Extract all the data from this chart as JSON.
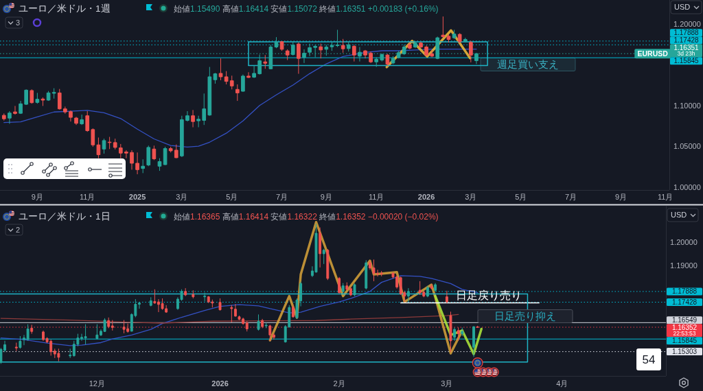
{
  "chart_data": [
    {
      "type": "candlestick",
      "title": "ユーロ／米ドル・1週",
      "subtitle": "始値1.15490 高値1.16414 安値1.15072 終値1.16351 +0.00183 (+0.16%)",
      "ylabel": "USD",
      "x": [
        "2024-07-22",
        "2024-07-29",
        "2024-08-05",
        "2024-08-12",
        "2024-08-19",
        "2024-08-26",
        "2024-09-02",
        "2024-09-09",
        "2024-09-16",
        "2024-09-23",
        "2024-09-30",
        "2024-10-07",
        "2024-10-14",
        "2024-10-21",
        "2024-10-28",
        "2024-11-04",
        "2024-11-11",
        "2024-11-18",
        "2024-11-25",
        "2024-12-02",
        "2024-12-09",
        "2024-12-16",
        "2024-12-23",
        "2024-12-30",
        "2025-01-06",
        "2025-01-13",
        "2025-01-20",
        "2025-01-27",
        "2025-02-03",
        "2025-02-10",
        "2025-02-17",
        "2025-02-24",
        "2025-03-03",
        "2025-03-10",
        "2025-03-17",
        "2025-03-24",
        "2025-03-31",
        "2025-04-07",
        "2025-04-14",
        "2025-04-21",
        "2025-04-28",
        "2025-05-05",
        "2025-05-12",
        "2025-05-19",
        "2025-05-26",
        "2025-06-02",
        "2025-06-09",
        "2025-06-16",
        "2025-06-23",
        "2025-06-30",
        "2025-07-07",
        "2025-07-14",
        "2025-07-21",
        "2025-07-28",
        "2025-08-04",
        "2025-08-11",
        "2025-08-18",
        "2025-08-25",
        "2025-09-01",
        "2025-09-08",
        "2025-09-15",
        "2025-09-22",
        "2025-09-29",
        "2025-10-06",
        "2025-10-13",
        "2025-10-20",
        "2025-10-27",
        "2025-11-03",
        "2025-11-10",
        "2025-11-17",
        "2025-11-24",
        "2025-12-01",
        "2025-12-08",
        "2025-12-15",
        "2025-12-22",
        "2025-12-29",
        "2026-01-05",
        "2026-01-12",
        "2026-01-19",
        "2026-01-26",
        "2026-02-02",
        "2026-02-09",
        "2026-02-16",
        "2026-02-23",
        "2026-03-02",
        "2026-03-09"
      ],
      "ohlc": [
        [
          1.0879,
          1.0902,
          1.0815,
          1.0837
        ],
        [
          1.0845,
          1.093,
          1.0775,
          1.0907
        ],
        [
          1.0921,
          1.0994,
          1.0888,
          1.0902
        ],
        [
          1.0904,
          1.1056,
          1.0896,
          1.102
        ],
        [
          1.1014,
          1.1197,
          1.1006,
          1.1188
        ],
        [
          1.1183,
          1.1197,
          1.1022,
          1.1034
        ],
        [
          1.1037,
          1.1154,
          1.1022,
          1.1076
        ],
        [
          1.1079,
          1.1098,
          1.0994,
          1.1065
        ],
        [
          1.1065,
          1.1177,
          1.1056,
          1.1154
        ],
        [
          1.1149,
          1.1211,
          1.1084,
          1.116
        ],
        [
          1.1154,
          1.1202,
          1.0949,
          1.0958
        ],
        [
          1.0958,
          1.0986,
          1.0899,
          1.0921
        ],
        [
          1.0924,
          1.0938,
          1.0803,
          1.0854
        ],
        [
          1.0846,
          1.086,
          1.0761,
          1.0781
        ],
        [
          1.0775,
          1.0888,
          1.0761,
          1.0826
        ],
        [
          1.0874,
          1.093,
          1.0677,
          1.0691
        ],
        [
          1.0705,
          1.0719,
          1.0494,
          1.0517
        ],
        [
          1.0517,
          1.0607,
          1.0354,
          1.0396
        ],
        [
          1.0466,
          1.0593,
          1.041,
          1.057
        ],
        [
          1.0551,
          1.0615,
          1.0466,
          1.0545
        ],
        [
          1.0545,
          1.0593,
          1.0461,
          1.0486
        ],
        [
          1.048,
          1.0528,
          1.0354,
          1.0416
        ],
        [
          1.043,
          1.0452,
          1.0354,
          1.0416
        ],
        [
          1.0424,
          1.0452,
          1.0213,
          1.0292
        ],
        [
          1.0292,
          1.0424,
          1.0157,
          1.0213
        ],
        [
          1.0228,
          1.034,
          1.0171,
          1.0256
        ],
        [
          1.027,
          1.0508,
          1.0256,
          1.0486
        ],
        [
          1.0466,
          1.0508,
          1.0331,
          1.0346
        ],
        [
          1.0256,
          1.0354,
          1.0199,
          1.0312
        ],
        [
          1.0275,
          1.0494,
          1.027,
          1.0472
        ],
        [
          1.0472,
          1.0494,
          1.0424,
          1.0444
        ],
        [
          1.0452,
          1.0522,
          1.0354,
          1.036
        ],
        [
          1.0382,
          1.0874,
          1.0368,
          1.0826
        ],
        [
          1.0817,
          1.093,
          1.0803,
          1.0874
        ],
        [
          1.0874,
          1.0944,
          1.0733,
          1.0803
        ],
        [
          1.0812,
          1.0874,
          1.0733,
          1.0831
        ],
        [
          1.0817,
          1.1146,
          1.0761,
          1.0958
        ],
        [
          1.0882,
          1.1472,
          1.0874,
          1.1351
        ],
        [
          1.1315,
          1.1399,
          1.1267,
          1.1388
        ],
        [
          1.1393,
          1.1576,
          1.1309,
          1.1351
        ],
        [
          1.1351,
          1.1421,
          1.1258,
          1.1295
        ],
        [
          1.1303,
          1.1365,
          1.1197,
          1.1239
        ],
        [
          1.1197,
          1.1258,
          1.1056,
          1.1154
        ],
        [
          1.1174,
          1.1379,
          1.1169,
          1.136
        ],
        [
          1.136,
          1.1407,
          1.1337,
          1.1343
        ],
        [
          1.1346,
          1.1492,
          1.1337,
          1.1393
        ],
        [
          1.1388,
          1.1624,
          1.1379,
          1.1548
        ],
        [
          1.1534,
          1.1618,
          1.1449,
          1.1517
        ],
        [
          1.1449,
          1.1744,
          1.1444,
          1.1716
        ],
        [
          1.1716,
          1.1837,
          1.1702,
          1.1772
        ],
        [
          1.1781,
          1.1787,
          1.1669,
          1.1688
        ],
        [
          1.1669,
          1.1688,
          1.1556,
          1.1618
        ],
        [
          1.1624,
          1.1787,
          1.1612,
          1.1739
        ],
        [
          1.1753,
          1.1772,
          1.1388,
          1.1576
        ],
        [
          1.159,
          1.1688,
          1.152,
          1.164
        ],
        [
          1.1652,
          1.1758,
          1.1604,
          1.1708
        ],
        [
          1.1711,
          1.1744,
          1.159,
          1.1725
        ],
        [
          1.1719,
          1.1758,
          1.1576,
          1.168
        ],
        [
          1.1688,
          1.1744,
          1.161,
          1.1716
        ],
        [
          1.1719,
          1.1778,
          1.1669,
          1.1736
        ],
        [
          1.1733,
          1.1927,
          1.1716,
          1.1742
        ],
        [
          1.1736,
          1.1815,
          1.1646,
          1.1694
        ],
        [
          1.1697,
          1.1787,
          1.166,
          1.1744
        ],
        [
          1.1725,
          1.1744,
          1.1539,
          1.1618
        ],
        [
          1.1604,
          1.1716,
          1.1539,
          1.1652
        ],
        [
          1.1669,
          1.168,
          1.1576,
          1.1618
        ],
        [
          1.164,
          1.166,
          1.152,
          1.1534
        ],
        [
          1.1534,
          1.159,
          1.1472,
          1.1567
        ],
        [
          1.1556,
          1.164,
          1.1539,
          1.1624
        ],
        [
          1.1618,
          1.1632,
          1.1478,
          1.1506
        ],
        [
          1.152,
          1.1604,
          1.1506,
          1.1576
        ],
        [
          1.159,
          1.1669,
          1.1576,
          1.1646
        ],
        [
          1.1632,
          1.1744,
          1.1618,
          1.1716
        ],
        [
          1.1744,
          1.1772,
          1.1688,
          1.1702
        ],
        [
          1.1716,
          1.1787,
          1.1702,
          1.1764
        ],
        [
          1.1764,
          1.1781,
          1.1702,
          1.1716
        ],
        [
          1.1716,
          1.1736,
          1.1604,
          1.1618
        ],
        [
          1.1632,
          1.1674,
          1.159,
          1.1604
        ],
        [
          1.1576,
          1.1843,
          1.1567,
          1.1829
        ],
        [
          1.1862,
          1.209,
          1.1829,
          1.1843
        ],
        [
          1.1848,
          1.1871,
          1.1772,
          1.1809
        ],
        [
          1.1829,
          1.1927,
          1.1815,
          1.1876
        ],
        [
          1.1871,
          1.1885,
          1.1764,
          1.1781
        ],
        [
          1.1787,
          1.1829,
          1.1772,
          1.1809
        ],
        [
          1.1772,
          1.1792,
          1.1528,
          1.1617
        ],
        [
          1.1549,
          1.16414,
          1.15072,
          1.16351
        ]
      ],
      "colors": [
        "#ef5350",
        "#26a69a",
        "#ef5350",
        "#26a69a",
        "#26a69a",
        "#ef5350",
        "#26a69a",
        "#ef5350",
        "#26a69a",
        "#26a69a",
        "#ef5350",
        "#ef5350",
        "#ef5350",
        "#ef5350",
        "#26a69a",
        "#ef5350",
        "#ef5350",
        "#ef5350",
        "#26a69a",
        "#ef5350",
        "#ef5350",
        "#ef5350",
        "#ef5350",
        "#ef5350",
        "#ef5350",
        "#26a69a",
        "#26a69a",
        "#ef5350",
        "#26a69a",
        "#26a69a",
        "#ef5350",
        "#ef5350",
        "#26a69a",
        "#26a69a",
        "#ef5350",
        "#26a69a",
        "#26a69a",
        "#26a69a",
        "#26a69a",
        "#ef5350",
        "#ef5350",
        "#ef5350",
        "#ef5350",
        "#26a69a",
        "#ef5350",
        "#26a69a",
        "#26a69a",
        "#ef5350",
        "#26a69a",
        "#26a69a",
        "#ef5350",
        "#ef5350",
        "#26a69a",
        "#ef5350",
        "#26a69a",
        "#26a69a",
        "#26a69a",
        "#ef5350",
        "#26a69a",
        "#26a69a",
        "#26a69a",
        "#ef5350",
        "#26a69a",
        "#ef5350",
        "#26a69a",
        "#ef5350",
        "#ef5350",
        "#26a69a",
        "#26a69a",
        "#ef5350",
        "#26a69a",
        "#26a69a",
        "#26a69a",
        "#ef5350",
        "#26a69a",
        "#ef5350",
        "#ef5350",
        "#ef5350",
        "#26a69a",
        "#ef5350",
        "#ef5350",
        "#26a69a",
        "#ef5350",
        "#26a69a",
        "#ef5350",
        "#26a69a"
      ],
      "xlim": [
        "2024-07-17",
        "2026-11-07"
      ],
      "ylim": [
        0.9964,
        1.2292
      ],
      "xticks": [
        {
          "value": "2024-09-02",
          "label": "9月"
        },
        {
          "value": "2024-11-04",
          "label": "11月"
        },
        {
          "value": "2025-01-06",
          "label": "2025"
        },
        {
          "value": "2025-03-03",
          "label": "3月"
        },
        {
          "value": "2025-05-05",
          "label": "5月"
        },
        {
          "value": "2025-07-07",
          "label": "7月"
        },
        {
          "value": "2025-09-01",
          "label": "9月"
        },
        {
          "value": "2025-11-03",
          "label": "11月"
        },
        {
          "value": "2026-01-05",
          "label": "2026"
        },
        {
          "value": "2026-03-02",
          "label": "3月"
        },
        {
          "value": "2026-05-04",
          "label": "5月"
        },
        {
          "value": "2026-07-06",
          "label": "7月"
        },
        {
          "value": "2026-09-07",
          "label": "9月"
        },
        {
          "value": "2026-11-02",
          "label": "11月"
        }
      ],
      "yticks": [
        {
          "value": 1.0,
          "label": "1.00000"
        },
        {
          "value": 1.05,
          "label": "1.05000"
        },
        {
          "value": 1.1,
          "label": "1.10000"
        },
        {
          "value": 1.2,
          "label": "1.20000"
        }
      ],
      "series": [
        {
          "type": "line",
          "color": "#3451c4",
          "x": [
            "2024-07-22",
            "2024-08-12",
            "2024-09-02",
            "2024-09-23",
            "2024-10-14",
            "2024-11-04",
            "2024-11-25",
            "2024-12-16",
            "2025-01-06",
            "2025-01-27",
            "2025-02-17",
            "2025-03-10",
            "2025-03-24",
            "2025-04-07",
            "2025-04-28",
            "2025-05-19",
            "2025-06-09",
            "2025-06-30",
            "2025-07-21",
            "2025-08-11",
            "2025-09-01",
            "2025-09-22",
            "2025-10-20",
            "2025-11-10",
            "2025-12-01",
            "2025-12-22",
            "2026-01-12",
            "2026-02-02",
            "2026-02-23",
            "2026-03-09"
          ],
          "values": [
            1.079,
            1.08,
            1.086,
            1.092,
            1.093,
            1.094,
            1.091,
            1.084,
            1.071,
            1.059,
            1.051,
            1.049,
            1.05,
            1.055,
            1.066,
            1.081,
            1.1,
            1.113,
            1.125,
            1.139,
            1.151,
            1.16,
            1.165,
            1.167,
            1.167,
            1.168,
            1.169,
            1.169,
            1.169,
            1.169
          ]
        },
        {
          "type": "line",
          "color": "#e8b53a",
          "x": [
            "2025-11-16",
            "2025-12-18",
            "2026-01-06",
            "2026-02-05",
            "2026-03-01"
          ],
          "values": [
            1.147,
            1.179,
            1.16,
            1.192,
            1.158
          ]
        },
        {
          "type": "line",
          "color": "#1fb5c6",
          "x": [
            "2025-05-26",
            "2026-03-23",
            "2026-03-23",
            "2025-05-26"
          ],
          "values": [
            1.178,
            1.178,
            1.149,
            1.149
          ]
        },
        {
          "type": "line",
          "color": "#1fb5c6",
          "x": [
            "2025-05-26",
            "2025-05-26"
          ],
          "values": [
            1.149,
            1.178
          ]
        }
      ],
      "ref_lines": [
        {
          "axis": "y",
          "value": 1.17888,
          "label": "1.17888",
          "color": "#00bcd4",
          "line_style": "dotted"
        },
        {
          "axis": "y",
          "value": 1.17428,
          "label": "1.17428",
          "color": "#00bcd4",
          "line_style": "dotted"
        },
        {
          "axis": "y",
          "value": 1.16351,
          "label": "1.16351\n3d 23h",
          "color": "#26a69a",
          "line_style": "dotted"
        },
        {
          "axis": "y",
          "value": 1.15845,
          "label": "1.15845",
          "color": "#00bcd4",
          "line_style": "solid"
        }
      ],
      "annotations": [
        "3",
        {
          "text": "EURUSD",
          "x": "2026-10-17",
          "y": 1.16351
        },
        "週足買い支え"
      ]
    },
    {
      "type": "candlestick",
      "title": "ユーロ／米ドル・1日",
      "subtitle": "始値1.16365 高値1.16414 安値1.16322 終値1.16352 −0.00020 (−0.02%)",
      "ylabel": "USD",
      "x": [
        "2025-11-06",
        "2025-11-07",
        "2025-11-10",
        "2025-11-11",
        "2025-11-12",
        "2025-11-13",
        "2025-11-14",
        "2025-11-17",
        "2025-11-18",
        "2025-11-19",
        "2025-11-20",
        "2025-11-21",
        "2025-11-24",
        "2025-11-25",
        "2025-11-26",
        "2025-11-27",
        "2025-11-28",
        "2025-12-01",
        "2025-12-02",
        "2025-12-03",
        "2025-12-04",
        "2025-12-05",
        "2025-12-08",
        "2025-12-09",
        "2025-12-10",
        "2025-12-11",
        "2025-12-12",
        "2025-12-15",
        "2025-12-16",
        "2025-12-17",
        "2025-12-18",
        "2025-12-19",
        "2025-12-22",
        "2025-12-23",
        "2025-12-24",
        "2025-12-26",
        "2025-12-29",
        "2025-12-30",
        "2025-12-31",
        "2026-01-02",
        "2026-01-05",
        "2026-01-06",
        "2026-01-07",
        "2026-01-08",
        "2026-01-09",
        "2026-01-12",
        "2026-01-13",
        "2026-01-14",
        "2026-01-15",
        "2026-01-16",
        "2026-01-19",
        "2026-01-20",
        "2026-01-21",
        "2026-01-22",
        "2026-01-23",
        "2026-01-26",
        "2026-01-27",
        "2026-01-28",
        "2026-01-29",
        "2026-01-30",
        "2026-02-02",
        "2026-02-03",
        "2026-02-04",
        "2026-02-05",
        "2026-02-06",
        "2026-02-09",
        "2026-02-10",
        "2026-02-11",
        "2026-02-12",
        "2026-02-13",
        "2026-02-16",
        "2026-02-17",
        "2026-02-18",
        "2026-02-19",
        "2026-02-20",
        "2026-02-23",
        "2026-02-24",
        "2026-02-25",
        "2026-02-26",
        "2026-02-27",
        "2026-03-02",
        "2026-03-03",
        "2026-03-04",
        "2026-03-05",
        "2026-03-06",
        "2026-03-09",
        "2026-03-10"
      ],
      "ohlc": [
        [
          1.1484,
          1.1546,
          1.1478,
          1.154
        ],
        [
          1.1536,
          1.1577,
          1.1528,
          1.156
        ],
        [
          1.155,
          1.1569,
          1.1533,
          1.1546
        ],
        [
          1.1548,
          1.1597,
          1.1543,
          1.1575
        ],
        [
          1.1582,
          1.1602,
          1.1558,
          1.1589
        ],
        [
          1.1582,
          1.1648,
          1.1577,
          1.1628
        ],
        [
          1.1631,
          1.1646,
          1.1607,
          1.1617
        ],
        [
          1.1615,
          1.1621,
          1.1577,
          1.1582
        ],
        [
          1.1587,
          1.1592,
          1.1567,
          1.1572
        ],
        [
          1.1575,
          1.1582,
          1.1513,
          1.153
        ],
        [
          1.1533,
          1.1543,
          1.1503,
          1.152
        ],
        [
          1.1523,
          1.1543,
          1.1489,
          1.1506
        ],
        [
          1.1512,
          1.1543,
          1.1503,
          1.1516
        ],
        [
          1.1513,
          1.1577,
          1.1508,
          1.1562
        ],
        [
          1.1562,
          1.1607,
          1.1553,
          1.1589
        ],
        [
          1.1587,
          1.1607,
          1.1577,
          1.1592
        ],
        [
          1.1589,
          1.1648,
          1.156,
          1.1595
        ],
        [
          1.1587,
          1.1648,
          1.1582,
          1.1602
        ],
        [
          1.1602,
          1.1626,
          1.1597,
          1.1618
        ],
        [
          1.1617,
          1.1674,
          1.1615,
          1.1666
        ],
        [
          1.1664,
          1.1677,
          1.1631,
          1.1638
        ],
        [
          1.1641,
          1.1666,
          1.1621,
          1.1634
        ],
        [
          1.1636,
          1.1666,
          1.1609,
          1.1626
        ],
        [
          1.1629,
          1.1651,
          1.1612,
          1.1617
        ],
        [
          1.1618,
          1.1695,
          1.1617,
          1.169
        ],
        [
          1.1685,
          1.1756,
          1.1678,
          1.1734
        ],
        [
          1.1734,
          1.1744,
          1.1715,
          1.1739
        ],
        [
          1.1729,
          1.1764,
          1.1725,
          1.1749
        ],
        [
          1.1746,
          1.1798,
          1.1736,
          1.1739
        ],
        [
          1.1744,
          1.1756,
          1.17,
          1.1733
        ],
        [
          1.1737,
          1.1759,
          1.171,
          1.1715
        ],
        [
          1.1715,
          1.173,
          1.1697,
          1.17
        ],
        [
          1.1715,
          1.1764,
          1.171,
          1.1756
        ],
        [
          1.1754,
          1.1798,
          1.1749,
          1.1789
        ],
        [
          1.1789,
          1.1803,
          1.1769,
          1.1774
        ],
        [
          1.1776,
          1.1794,
          1.1759,
          1.1766
        ],
        [
          1.1766,
          1.1784,
          1.1746,
          1.1769
        ],
        [
          1.1766,
          1.1769,
          1.1739,
          1.1744
        ],
        [
          1.1744,
          1.1754,
          1.172,
          1.1739
        ],
        [
          1.1742,
          1.1759,
          1.1707,
          1.171
        ],
        [
          1.172,
          1.173,
          1.1656,
          1.1715
        ],
        [
          1.1713,
          1.1735,
          1.168,
          1.1683
        ],
        [
          1.168,
          1.1685,
          1.1666,
          1.1669
        ],
        [
          1.1671,
          1.1676,
          1.1646,
          1.1651
        ],
        [
          1.1654,
          1.1661,
          1.1617,
          1.1628
        ],
        [
          1.1626,
          1.169,
          1.1621,
          1.1661
        ],
        [
          1.1664,
          1.1671,
          1.1631,
          1.1638
        ],
        [
          1.1641,
          1.1654,
          1.1631,
          1.1644
        ],
        [
          1.1641,
          1.1646,
          1.1577,
          1.1602
        ],
        [
          1.1602,
          1.1609,
          1.1582,
          1.1592
        ],
        [
          1.1572,
          1.1644,
          1.1569,
          1.1638
        ],
        [
          1.1636,
          1.173,
          1.1634,
          1.172
        ],
        [
          1.172,
          1.173,
          1.1676,
          1.168
        ],
        [
          1.1676,
          1.1759,
          1.1671,
          1.1752
        ],
        [
          1.1749,
          1.1831,
          1.1725,
          1.1823
        ],
        [
          1.1857,
          1.1897,
          1.1851,
          1.1877
        ],
        [
          1.1872,
          1.2079,
          1.187,
          1.2039
        ],
        [
          1.2039,
          1.2064,
          1.1892,
          1.1951
        ],
        [
          1.1951,
          1.1972,
          1.1907,
          1.1966
        ],
        [
          1.1966,
          1.1971,
          1.1838,
          1.1845
        ],
        [
          1.1845,
          1.1851,
          1.1779,
          1.1784
        ],
        [
          1.1789,
          1.1825,
          1.1779,
          1.1813
        ],
        [
          1.1813,
          1.1828,
          1.1795,
          1.1798
        ],
        [
          1.1801,
          1.1808,
          1.1769,
          1.1774
        ],
        [
          1.1774,
          1.1823,
          1.1769,
          1.1818
        ],
        [
          1.1803,
          1.1923,
          1.1798,
          1.1912
        ],
        [
          1.1912,
          1.1921,
          1.1882,
          1.189
        ],
        [
          1.189,
          1.1926,
          1.1833,
          1.1867
        ],
        [
          1.1867,
          1.1882,
          1.1853,
          1.1864
        ],
        [
          1.1867,
          1.1877,
          1.1854,
          1.1864
        ],
        [
          1.1867,
          1.1872,
          1.1845,
          1.1851
        ],
        [
          1.1851,
          1.1857,
          1.1801,
          1.1808
        ],
        [
          1.1848,
          1.1853,
          1.1774,
          1.1779
        ],
        [
          1.1784,
          1.1792,
          1.1744,
          1.1769
        ],
        [
          1.1769,
          1.1803,
          1.1744,
          1.1789
        ],
        [
          1.1794,
          1.1833,
          1.1774,
          1.1784
        ],
        [
          1.1786,
          1.1792,
          1.1764,
          1.1769
        ],
        [
          1.1769,
          1.1813,
          1.1764,
          1.1805
        ],
        [
          1.1811,
          1.1821,
          1.1798,
          1.1803
        ],
        [
          1.1794,
          1.1825,
          1.1789,
          1.1818
        ],
        [
          1.1766,
          1.1792,
          1.1739,
          1.1744
        ],
        [
          1.1685,
          1.1702,
          1.1528,
          1.1577
        ],
        [
          1.1592,
          1.1634,
          1.1577,
          1.1626
        ],
        [
          1.1621,
          1.1634,
          1.1577,
          1.1607
        ],
        [
          1.1607,
          1.1634,
          1.1597,
          1.1617
        ],
        [
          1.1549,
          1.164,
          1.15072,
          1.16372
        ],
        [
          1.16365,
          1.16414,
          1.16322,
          1.16352
        ]
      ],
      "colors": [
        "#26a69a",
        "#26a69a",
        "#ef5350",
        "#26a69a",
        "#26a69a",
        "#26a69a",
        "#ef5350",
        "#ef5350",
        "#ef5350",
        "#ef5350",
        "#ef5350",
        "#ef5350",
        "#26a69a",
        "#26a69a",
        "#26a69a",
        "#26a69a",
        "#26a69a",
        "#26a69a",
        "#26a69a",
        "#26a69a",
        "#ef5350",
        "#ef5350",
        "#ef5350",
        "#ef5350",
        "#26a69a",
        "#26a69a",
        "#26a69a",
        "#26a69a",
        "#ef5350",
        "#ef5350",
        "#ef5350",
        "#ef5350",
        "#26a69a",
        "#26a69a",
        "#ef5350",
        "#ef5350",
        "#26a69a",
        "#ef5350",
        "#ef5350",
        "#ef5350",
        "#ef5350",
        "#ef5350",
        "#ef5350",
        "#ef5350",
        "#ef5350",
        "#26a69a",
        "#ef5350",
        "#26a69a",
        "#ef5350",
        "#ef5350",
        "#26a69a",
        "#26a69a",
        "#ef5350",
        "#26a69a",
        "#26a69a",
        "#26a69a",
        "#26a69a",
        "#ef5350",
        "#26a69a",
        "#ef5350",
        "#ef5350",
        "#26a69a",
        "#ef5350",
        "#ef5350",
        "#26a69a",
        "#26a69a",
        "#ef5350",
        "#ef5350",
        "#ef5350",
        "#ef5350",
        "#ef5350",
        "#ef5350",
        "#ef5350",
        "#ef5350",
        "#26a69a",
        "#ef5350",
        "#ef5350",
        "#26a69a",
        "#ef5350",
        "#26a69a",
        "#ef5350",
        "#ef5350",
        "#26a69a",
        "#ef5350",
        "#26a69a",
        "#26a69a",
        "#ef5350"
      ],
      "xlim": [
        "2025-11-05T18:00",
        "2026-04-28"
      ],
      "ylim": [
        1.1426,
        1.2157
      ],
      "xticks": [
        {
          "value": "2025-12-01",
          "label": "12月"
        },
        {
          "value": "2026-01-02",
          "label": "2026"
        },
        {
          "value": "2026-02-02",
          "label": "2月"
        },
        {
          "value": "2026-03-02",
          "label": "3月"
        },
        {
          "value": "2026-04-01",
          "label": "4月"
        }
      ],
      "yticks": [
        {
          "value": 1.19,
          "label": "1.19000"
        },
        {
          "value": 1.2,
          "label": "1.20000"
        }
      ],
      "series": [
        {
          "type": "line",
          "color": "#3451c4",
          "x": [
            "2025-11-06",
            "2025-11-12",
            "2025-11-18",
            "2025-11-24",
            "2025-11-27",
            "2025-12-02",
            "2025-12-05",
            "2025-12-10",
            "2025-12-15",
            "2025-12-18",
            "2025-12-23",
            "2025-12-29",
            "2026-01-02",
            "2026-01-07",
            "2026-01-12",
            "2026-01-15",
            "2026-01-20",
            "2026-01-23",
            "2026-01-28",
            "2026-02-02",
            "2026-02-05",
            "2026-02-10",
            "2026-02-13",
            "2026-02-18",
            "2026-02-23",
            "2026-02-26",
            "2026-03-03",
            "2026-03-06",
            "2026-03-10"
          ],
          "values": [
            1.1589,
            1.1582,
            1.1567,
            1.1556,
            1.1558,
            1.1569,
            1.1585,
            1.1602,
            1.1626,
            1.1651,
            1.1678,
            1.1707,
            1.1725,
            1.1732,
            1.1727,
            1.1715,
            1.1697,
            1.17,
            1.1725,
            1.1744,
            1.1759,
            1.1789,
            1.1828,
            1.1857,
            1.1854,
            1.1845,
            1.1823,
            1.1798,
            1.1784
          ]
        },
        {
          "type": "line",
          "color": "#8e3a3a",
          "x": [
            "2025-11-06",
            "2025-11-24",
            "2025-12-10",
            "2025-12-18",
            "2025-12-31",
            "2026-01-15",
            "2026-01-27",
            "2026-02-05",
            "2026-02-18",
            "2026-03-02",
            "2026-03-05"
          ],
          "values": [
            1.1673,
            1.1666,
            1.1656,
            1.1653,
            1.1661,
            1.1663,
            1.1664,
            1.167,
            1.1677,
            1.1685,
            1.169
          ]
        },
        {
          "type": "line",
          "color": "#d9a53a",
          "x": [
            "2026-01-15",
            "2026-01-20",
            "2026-01-22",
            "2026-01-23",
            "2026-01-27",
            "2026-02-03",
            "2026-02-10",
            "2026-02-11",
            "2026-02-17",
            "2026-02-19",
            "2026-02-26",
            "2026-02-27",
            "2026-03-03",
            "2026-03-06"
          ],
          "values": [
            1.1579,
            1.1769,
            1.1676,
            1.1862,
            1.2087,
            1.1769,
            1.1921,
            1.1862,
            1.1872,
            1.1744,
            1.1818,
            1.1764,
            1.1523,
            1.1621
          ]
        },
        {
          "type": "line",
          "color": "#a8e03a",
          "x": [
            "2026-02-27",
            "2026-03-03",
            "2026-03-06",
            "2026-03-09",
            "2026-03-11"
          ],
          "values": [
            1.1769,
            1.1602,
            1.1621,
            1.152,
            1.1628
          ]
        },
        {
          "type": "line",
          "color": "#ffffff",
          "x": [
            "2026-02-18",
            "2026-03-26"
          ],
          "values": [
            1.174,
            1.174
          ]
        },
        {
          "type": "line",
          "color": "#1fb5c6",
          "x": [
            "2025-11-05T18:00",
            "2026-03-23",
            "2026-03-23",
            "2025-11-05T18:00"
          ],
          "values": [
            1.1778,
            1.1778,
            1.1486,
            1.1486
          ]
        }
      ],
      "ref_lines": [
        {
          "axis": "y",
          "value": 1.17888,
          "label": "1.17888",
          "color": "#00bcd4",
          "line_style": "dotted"
        },
        {
          "axis": "y",
          "value": 1.17428,
          "label": "1.17428",
          "color": "#00bcd4",
          "line_style": "dotted"
        },
        {
          "axis": "y",
          "value": 1.16549,
          "label": "1.16549",
          "color": "#d1d4dc",
          "line_style": "solid"
        },
        {
          "axis": "y",
          "value": 1.16352,
          "label": "1.16352\n22:53:53",
          "color": "#f23645",
          "line_style": "dotted"
        },
        {
          "axis": "y",
          "value": 1.15845,
          "label": "1.15845",
          "color": "#00bcd4",
          "line_style": "solid"
        },
        {
          "axis": "y",
          "value": 1.15303,
          "label": "1.15303",
          "color": "#e0e3eb",
          "line_style": "dotted"
        }
      ],
      "annotations": [
        "2",
        {
          "text": "日足戻り売り",
          "x": "2026-03-13",
          "y": 1.1772
        },
        "日足売り抑え",
        "54"
      ]
    }
  ]
}
